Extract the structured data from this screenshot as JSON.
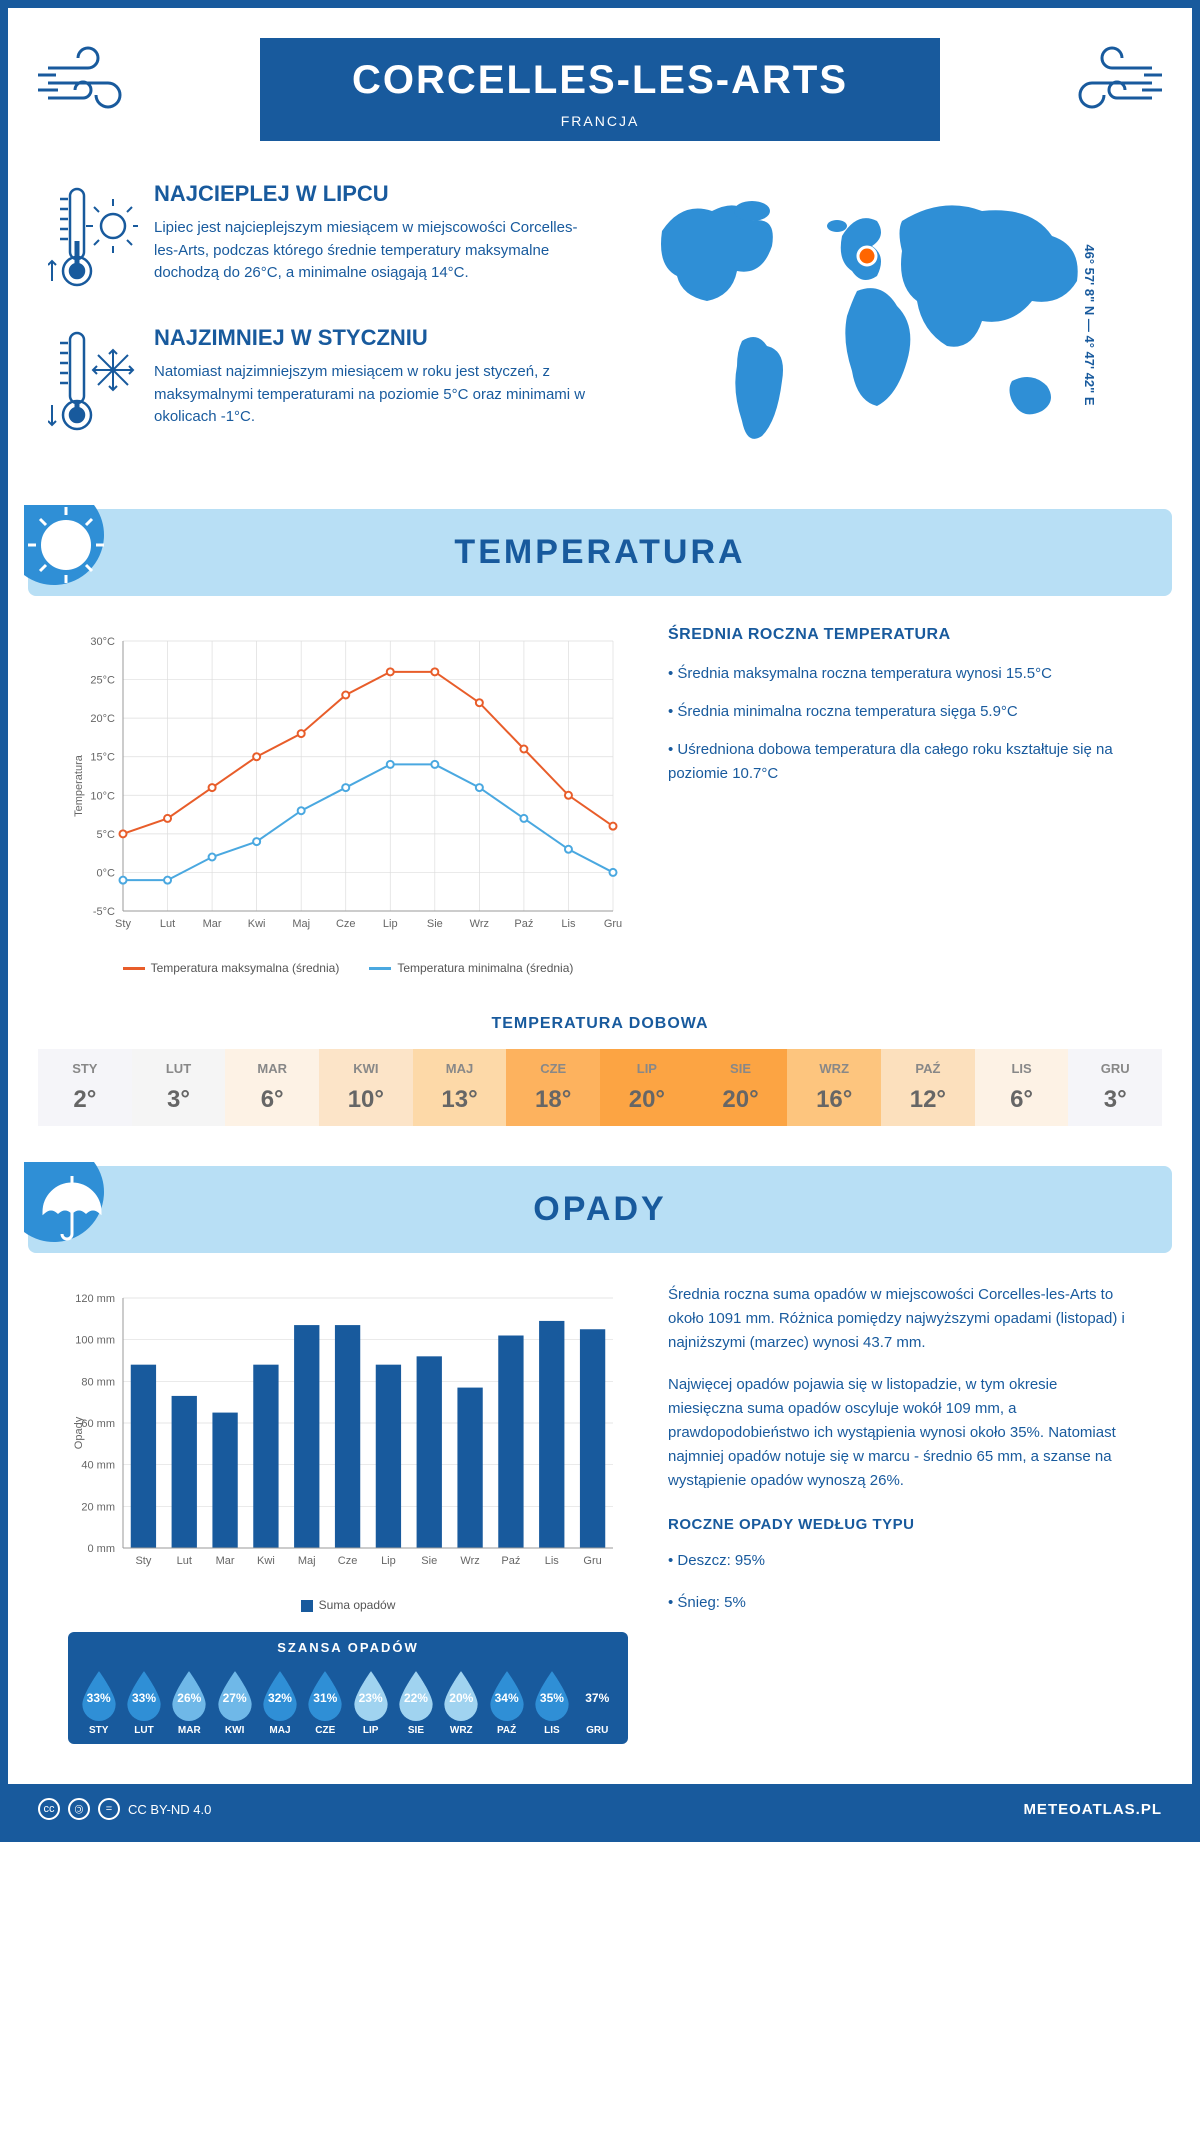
{
  "header": {
    "city": "CORCELLES-LES-ARTS",
    "country": "FRANCJA",
    "coords": "46° 57' 8\" N — 4° 47' 42\" E"
  },
  "intro": {
    "hot": {
      "title": "NAJCIEPLEJ W LIPCU",
      "text": "Lipiec jest najcieplejszym miesiącem w miejscowości Corcelles-les-Arts, podczas którego średnie temperatury maksymalne dochodzą do 26°C, a minimalne osiągają 14°C."
    },
    "cold": {
      "title": "NAJZIMNIEJ W STYCZNIU",
      "text": "Natomiast najzimniejszym miesiącem w roku jest styczeń, z maksymalnymi temperaturami na poziomie 5°C oraz minimami w okolicach -1°C."
    },
    "map_marker_color": "#ff6600",
    "map_land_color": "#2f8fd6"
  },
  "months": [
    "Sty",
    "Lut",
    "Mar",
    "Kwi",
    "Maj",
    "Cze",
    "Lip",
    "Sie",
    "Wrz",
    "Paź",
    "Lis",
    "Gru"
  ],
  "months_upper": [
    "STY",
    "LUT",
    "MAR",
    "KWI",
    "MAJ",
    "CZE",
    "LIP",
    "SIE",
    "WRZ",
    "PAŹ",
    "LIS",
    "GRU"
  ],
  "temperature": {
    "section_title": "TEMPERATURA",
    "chart": {
      "ylabel": "Temperatura",
      "ymin": -5,
      "ymax": 30,
      "ystep": 5,
      "max_series": {
        "values": [
          5,
          7,
          11,
          15,
          18,
          23,
          26,
          26,
          22,
          16,
          10,
          6
        ],
        "color": "#e85d2a",
        "label": "Temperatura maksymalna (średnia)"
      },
      "min_series": {
        "values": [
          -1,
          -1,
          2,
          4,
          8,
          11,
          14,
          14,
          11,
          7,
          3,
          0
        ],
        "color": "#4aa8e0",
        "label": "Temperatura minimalna (średnia)"
      },
      "grid_color": "#ddd"
    },
    "text": {
      "heading": "ŚREDNIA ROCZNA TEMPERATURA",
      "lines": [
        "• Średnia maksymalna roczna temperatura wynosi 15.5°C",
        "• Średnia minimalna roczna temperatura sięga 5.9°C",
        "• Uśredniona dobowa temperatura dla całego roku kształtuje się na poziomie 10.7°C"
      ]
    },
    "dobowa": {
      "title": "TEMPERATURA DOBOWA",
      "values": [
        "2°",
        "3°",
        "6°",
        "10°",
        "13°",
        "18°",
        "20°",
        "20°",
        "16°",
        "12°",
        "6°",
        "3°"
      ],
      "bg_colors": [
        "#f5f5f9",
        "#f5f5f5",
        "#fdf2e5",
        "#fce4c8",
        "#fdd9a8",
        "#fdb25e",
        "#fca443",
        "#fca443",
        "#fdc57e",
        "#fce0bd",
        "#fdf2e5",
        "#f5f5f9"
      ]
    }
  },
  "opady": {
    "section_title": "OPADY",
    "chart": {
      "ylabel": "Opady",
      "ymin": 0,
      "ymax": 120,
      "ystep": 20,
      "values": [
        88,
        73,
        65,
        88,
        107,
        107,
        88,
        92,
        77,
        102,
        109,
        105
      ],
      "bar_color": "#185a9d",
      "legend": "Suma opadów"
    },
    "text": {
      "para1": "Średnia roczna suma opadów w miejscowości Corcelles-les-Arts to około 1091 mm. Różnica pomiędzy najwyższymi opadami (listopad) i najniższymi (marzec) wynosi 43.7 mm.",
      "para2": "Najwięcej opadów pojawia się w listopadzie, w tym okresie miesięczna suma opadów oscyluje wokół 109 mm, a prawdopodobieństwo ich wystąpienia wynosi około 35%. Natomiast najmniej opadów notuje się w marcu - średnio 65 mm, a szanse na wystąpienie opadów wynoszą 26%.",
      "type_heading": "ROCZNE OPADY WEDŁUG TYPU",
      "types": [
        "• Deszcz: 95%",
        "• Śnieg: 5%"
      ]
    },
    "szansa": {
      "title": "SZANSA OPADÓW",
      "values": [
        "33%",
        "33%",
        "26%",
        "27%",
        "32%",
        "31%",
        "23%",
        "22%",
        "20%",
        "34%",
        "35%",
        "37%"
      ],
      "drop_colors": [
        "#2f8fd6",
        "#2f8fd6",
        "#6fb8e8",
        "#6fb8e8",
        "#2f8fd6",
        "#2f8fd6",
        "#a0d3f0",
        "#a0d3f0",
        "#a0d3f0",
        "#2f8fd6",
        "#2f8fd6",
        "#185a9d"
      ]
    }
  },
  "footer": {
    "license": "CC BY-ND 4.0",
    "brand": "METEOATLAS.PL"
  },
  "palette": {
    "primary": "#185a9d",
    "light": "#b8dff5",
    "accent": "#2f8fd6"
  }
}
